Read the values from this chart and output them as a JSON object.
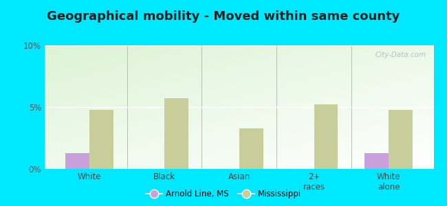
{
  "title": "Geographical mobility - Moved within same county",
  "categories": [
    "White",
    "Black",
    "Asian",
    "2+\nraces",
    "White\nalone"
  ],
  "arnold_line": [
    1.3,
    0.0,
    0.0,
    0.0,
    1.3
  ],
  "mississippi": [
    4.8,
    5.7,
    3.3,
    5.2,
    4.8
  ],
  "arnold_color": "#c9a0dc",
  "mississippi_color": "#c8ce9a",
  "background_outer": "#00e8ff",
  "ylim": [
    0,
    10
  ],
  "yticks": [
    0,
    5,
    10
  ],
  "ytick_labels": [
    "0%",
    "5%",
    "10%"
  ],
  "bar_width": 0.32,
  "title_fontsize": 13,
  "watermark": "City-Data.com",
  "gradient_top_left": "#c8e6c0",
  "gradient_bottom_right": "#ffffff"
}
